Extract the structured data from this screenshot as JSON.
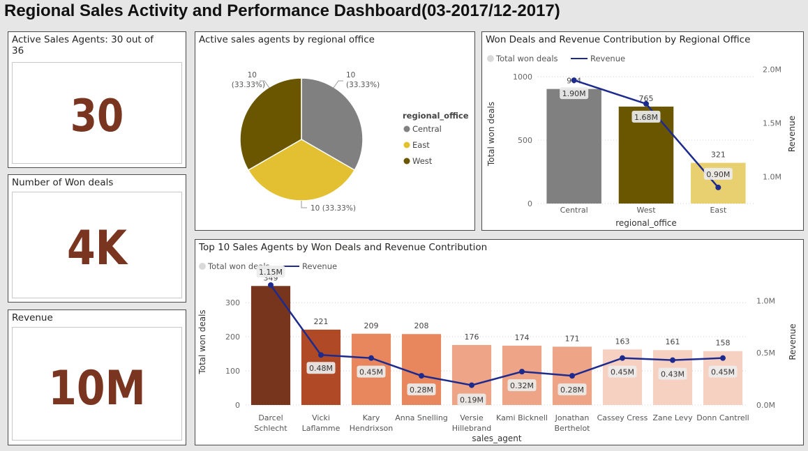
{
  "header": {
    "title": "Regional Sales Activity and Performance Dashboard(03-2017/12-2017)"
  },
  "kpis": {
    "active_agents": {
      "title": "Active Sales Agents: 30 out of 36",
      "value": "30"
    },
    "won_deals": {
      "title": "Number of Won deals",
      "value": "4K"
    },
    "revenue": {
      "title": "Revenue",
      "value": "10M"
    }
  },
  "colors": {
    "central": "#808080",
    "east": "#e2c032",
    "east_bar": "#e8d070",
    "west": "#6b5600",
    "line": "#1d2a8e",
    "kpi": "#7a3520"
  },
  "chart_data": [
    {
      "type": "pie",
      "title": "Active sales agents by regional office",
      "legend_title": "regional_office",
      "legend_position": "right",
      "slices": [
        {
          "label": "Central",
          "value": 10,
          "data_label": "10",
          "percent_label": "(33.33%)",
          "color": "#808080"
        },
        {
          "label": "East",
          "value": 10,
          "data_label": "10 (33.33%)",
          "percent_label": "",
          "color": "#e2c032"
        },
        {
          "label": "West",
          "value": 10,
          "data_label": "10",
          "percent_label": "(33.33%)",
          "color": "#6b5600"
        }
      ]
    },
    {
      "type": "bar",
      "title": "Won Deals and Revenue Contribution by Regional Office",
      "legend": [
        "Total won deals",
        "Revenue"
      ],
      "legend_position": "top-left",
      "xlabel": "regional_office",
      "ylabel": "Total won deals",
      "y2label": "Revenue",
      "categories": [
        "Central",
        "West",
        "East"
      ],
      "bar_colors": [
        "#808080",
        "#6b5600",
        "#e8d070"
      ],
      "ylim": [
        0,
        1100
      ],
      "y_ticks": [
        0,
        500,
        1000
      ],
      "y2lim": [
        0.75,
        2.05
      ],
      "y2_ticks": [
        1.0,
        1.5,
        2.0
      ],
      "y2_tick_labels": [
        "1.0M",
        "1.5M",
        "2.0M"
      ],
      "series": [
        {
          "name": "Total won deals",
          "values": [
            904,
            765,
            321
          ],
          "labels": [
            "904",
            "765",
            "321"
          ]
        },
        {
          "name": "Revenue",
          "values": [
            1.9,
            1.68,
            0.9
          ],
          "labels": [
            "1.90M",
            "1.68M",
            "0.90M"
          ]
        }
      ]
    },
    {
      "type": "bar",
      "title": "Top 10 Sales Agents by Won Deals and Revenue Contribution",
      "legend": [
        "Total won deals",
        "Revenue"
      ],
      "legend_position": "top-left",
      "xlabel": "sales_agent",
      "ylabel": "Total won deals",
      "y2label": "Revenue",
      "categories": [
        [
          "Darcel",
          "Schlecht"
        ],
        [
          "Vicki",
          "Laflamme"
        ],
        [
          "Kary",
          "Hendrixson"
        ],
        [
          "Anna Snelling"
        ],
        [
          "Versie",
          "Hillebrand"
        ],
        [
          "Kami Bicknell"
        ],
        [
          "Jonathan",
          "Berthelot"
        ],
        [
          "Cassey Cress"
        ],
        [
          "Zane Levy"
        ],
        [
          "Donn Cantrell"
        ]
      ],
      "bar_colors": [
        "#77351e",
        "#b04a26",
        "#e8875e",
        "#e8875e",
        "#eea486",
        "#eea486",
        "#eea486",
        "#f6d1c2",
        "#f6d1c2",
        "#f6d1c2"
      ],
      "ylim": [
        0,
        370
      ],
      "y_ticks": [
        0,
        100,
        200,
        300
      ],
      "y2lim": [
        0,
        1.21
      ],
      "y2_ticks": [
        0,
        0.5,
        1.0
      ],
      "y2_tick_labels": [
        "0.0M",
        "0.5M",
        "1.0M"
      ],
      "series": [
        {
          "name": "Total won deals",
          "values": [
            349,
            221,
            209,
            208,
            176,
            174,
            171,
            163,
            161,
            158
          ],
          "labels": [
            "349",
            "221",
            "209",
            "208",
            "176",
            "174",
            "171",
            "163",
            "161",
            "158"
          ]
        },
        {
          "name": "Revenue",
          "values": [
            1.15,
            0.48,
            0.45,
            0.28,
            0.19,
            0.32,
            0.28,
            0.45,
            0.43,
            0.45
          ],
          "labels": [
            "1.15M",
            "0.48M",
            "0.45M",
            "0.28M",
            "0.19M",
            "0.32M",
            "0.28M",
            "0.45M",
            "0.43M",
            "0.45M"
          ]
        }
      ]
    }
  ]
}
